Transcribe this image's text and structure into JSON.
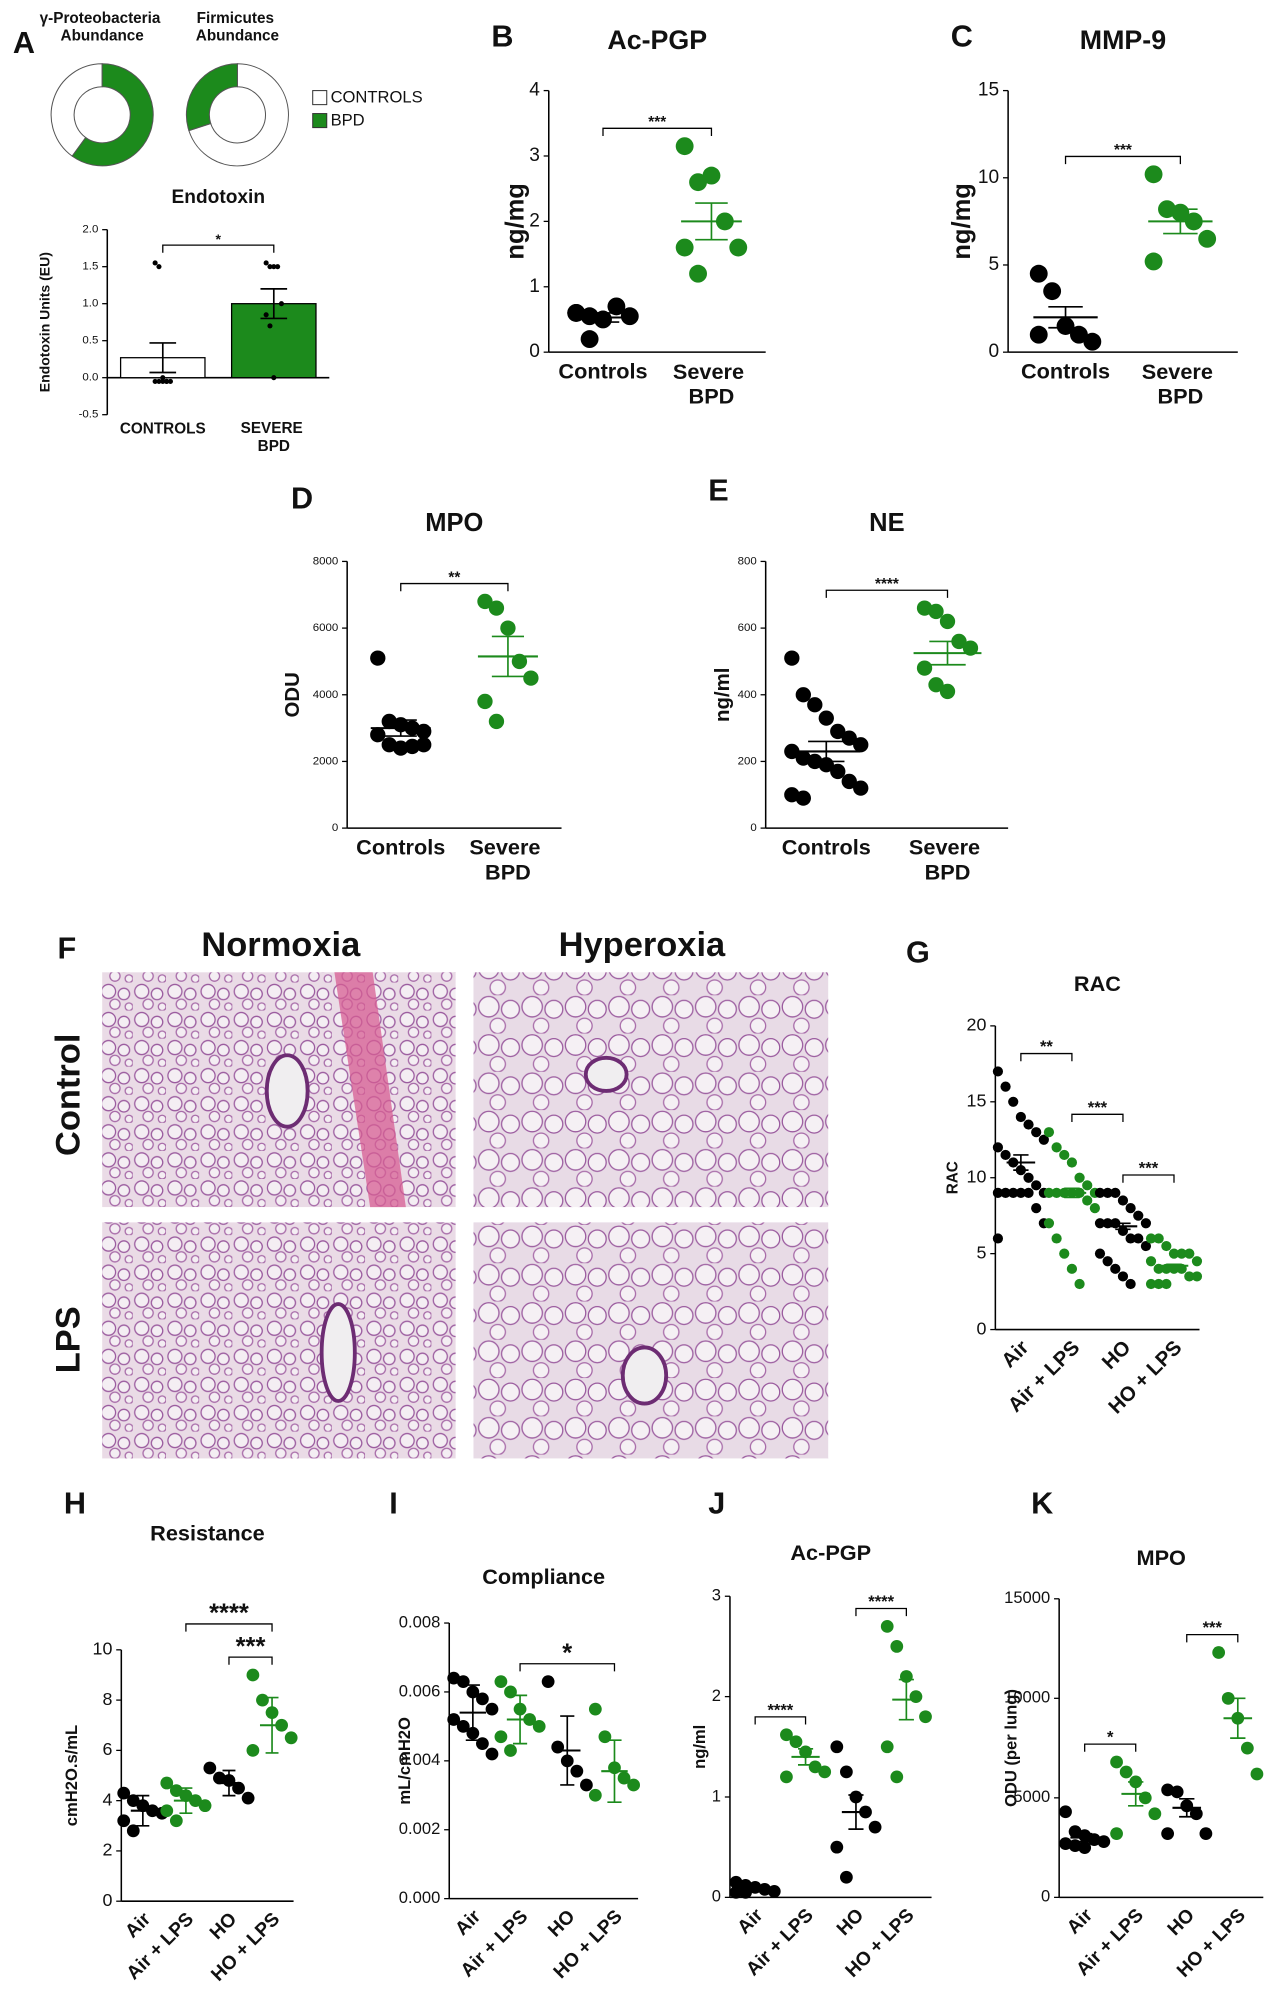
{
  "histology": {
    "letter": "F",
    "columns": [
      "Normoxia",
      "Hyperoxia"
    ],
    "rows": [
      "Control",
      "LPS"
    ]
  },
  "chart_data": [
    {
      "type": "pie",
      "letter": "A",
      "title": "γ-Proteobacteria Abundance",
      "categories": [
        "CONTROLS",
        "BPD"
      ],
      "values": [
        40,
        60
      ],
      "colors": [
        "#ffffff",
        "#1c8a1c"
      ]
    },
    {
      "type": "pie",
      "title": "Firmicutes Abundance",
      "values": [
        70,
        30
      ],
      "colors": [
        "#ffffff",
        "#1c8a1c"
      ]
    },
    {
      "type": "bar",
      "title": "Endotoxin",
      "ylabel": "Endotoxin Units (EU)",
      "categories": [
        "CONTROLS",
        "SEVERE BPD"
      ],
      "values": [
        0.27,
        1.0
      ],
      "errors": [
        0.2,
        0.2
      ],
      "colors": [
        "#ffffff",
        "#1c8a1c"
      ],
      "points": [
        [
          1.55,
          1.5,
          0.0,
          -0.05,
          -0.05,
          -0.05,
          -0.05,
          -0.05,
          -0.05
        ],
        [
          1.55,
          1.5,
          1.5,
          1.5,
          1.0,
          0.85,
          0.7,
          0.0
        ]
      ],
      "ylim": [
        -0.5,
        2.0
      ],
      "yticks": [
        -0.5,
        {
          "value": 0,
          "label": "0.0"
        },
        0.5,
        {
          "value": 1,
          "label": "1.0"
        },
        1.5,
        {
          "value": 2,
          "label": "2.0"
        }
      ],
      "brackets": [
        {
          "pair": [
            0,
            1
          ],
          "label": "*"
        }
      ]
    },
    {
      "type": "dot",
      "letter": "B",
      "title": "Ac-PGP",
      "ylabel": "ng/mg",
      "categories": [
        "Controls",
        "Severe BPD"
      ],
      "colors": [
        "#000000",
        "#1c8a1c"
      ],
      "points": [
        [
          0.6,
          0.55,
          0.5,
          0.7,
          0.55,
          0.6,
          0.2
        ],
        [
          3.15,
          2.6,
          2.7,
          2.0,
          1.6,
          1.6,
          1.2
        ]
      ],
      "means": [
        0.53,
        2.0
      ],
      "errors": [
        0.07,
        0.28
      ],
      "ylim": [
        0,
        4
      ],
      "yticks": [
        0,
        1,
        2,
        3,
        4
      ],
      "brackets": [
        {
          "pair": [
            0,
            1
          ],
          "label": "***"
        }
      ],
      "rotate_x_labels": false
    },
    {
      "type": "dot",
      "letter": "C",
      "title": "MMP-9",
      "ylabel": "ng/mg",
      "categories": [
        "Controls",
        "Severe BPD"
      ],
      "colors": [
        "#000000",
        "#1c8a1c"
      ],
      "points": [
        [
          4.5,
          3.5,
          1.5,
          1.0,
          0.6,
          1.0
        ],
        [
          10.2,
          8.2,
          8.0,
          7.5,
          6.5,
          5.2
        ]
      ],
      "means": [
        2.0,
        7.5
      ],
      "errors": [
        0.6,
        0.7
      ],
      "ylim": [
        0,
        15
      ],
      "yticks": [
        0,
        5,
        10,
        15
      ],
      "brackets": [
        {
          "pair": [
            0,
            1
          ],
          "label": "***"
        }
      ],
      "rotate_x_labels": false
    },
    {
      "type": "dot",
      "letter": "D",
      "title": "MPO",
      "ylabel": "ODU",
      "categories": [
        "Controls",
        "Severe BPD"
      ],
      "colors": [
        "#000000",
        "#1c8a1c"
      ],
      "points": [
        [
          5100,
          3200,
          3100,
          3000,
          2900,
          2800,
          2500,
          2400,
          2450,
          2500
        ],
        [
          6800,
          6600,
          6000,
          5000,
          4500,
          3800,
          3200
        ]
      ],
      "means": [
        3000,
        5150
      ],
      "errors": [
        240,
        600
      ],
      "ylim": [
        0,
        8000
      ],
      "yticks": [
        0,
        2000,
        4000,
        6000,
        8000
      ],
      "brackets": [
        {
          "pair": [
            0,
            1
          ],
          "label": "**"
        }
      ],
      "rotate_x_labels": false
    },
    {
      "type": "dot",
      "letter": "E",
      "title": "NE",
      "ylabel": "ng/ml",
      "categories": [
        "Controls",
        "Severe BPD"
      ],
      "colors": [
        "#000000",
        "#1c8a1c"
      ],
      "points": [
        [
          510,
          400,
          370,
          330,
          290,
          270,
          250,
          230,
          210,
          200,
          190,
          170,
          140,
          120,
          100,
          90
        ],
        [
          660,
          650,
          620,
          560,
          540,
          480,
          430,
          410
        ]
      ],
      "means": [
        230,
        525
      ],
      "errors": [
        30,
        35
      ],
      "ylim": [
        0,
        800
      ],
      "yticks": [
        0,
        200,
        400,
        600,
        800
      ],
      "brackets": [
        {
          "pair": [
            0,
            1
          ],
          "label": "****"
        }
      ],
      "rotate_x_labels": false
    },
    {
      "type": "dot",
      "letter": "G",
      "title": "RAC",
      "ylabel": "RAC",
      "categories": [
        "Air",
        "Air + LPS",
        "HO",
        "HO + LPS"
      ],
      "colors": [
        "#000000",
        "#1c8a1c",
        "#000000",
        "#1c8a1c"
      ],
      "points": [
        [
          17,
          16,
          15,
          14,
          13.5,
          13,
          12.5,
          12,
          11.5,
          11,
          10.5,
          10,
          9.5,
          9,
          9,
          9,
          9,
          9,
          9,
          8,
          7,
          6
        ],
        [
          13,
          12,
          11.5,
          11,
          10,
          9.5,
          9,
          9,
          9,
          9,
          9,
          9,
          8.5,
          8,
          7,
          6,
          5,
          4,
          3
        ],
        [
          9,
          9,
          9,
          8.5,
          8,
          7.5,
          7,
          7,
          7,
          7,
          6.5,
          6,
          6,
          5.5,
          5,
          4.5,
          4,
          3.5,
          3
        ],
        [
          6,
          6,
          5.5,
          5,
          5,
          5,
          4.5,
          4.5,
          4,
          4,
          4,
          4,
          3.5,
          3.5,
          3,
          3,
          3
        ]
      ],
      "means": [
        11,
        9,
        6.8,
        4.2
      ],
      "errors": [
        0.5,
        0.3,
        0.2,
        0.1
      ],
      "ylim": [
        0,
        20
      ],
      "yticks": [
        0,
        5,
        10,
        15,
        20
      ],
      "brackets": [
        {
          "pair": [
            0,
            1
          ],
          "label": "**"
        },
        {
          "pair": [
            1,
            2
          ],
          "label": "***"
        },
        {
          "pair": [
            2,
            3
          ],
          "label": "***"
        }
      ],
      "rotate_x_labels": true
    },
    {
      "type": "dot",
      "letter": "H",
      "title": "Resistance",
      "ylabel": "cmH2O.s/mL",
      "categories": [
        "Air",
        "Air + LPS",
        "HO",
        "HO + LPS"
      ],
      "colors": [
        "#000000",
        "#1c8a1c",
        "#000000",
        "#1c8a1c"
      ],
      "points": [
        [
          4.3,
          4.0,
          3.8,
          3.6,
          3.5,
          3.2,
          2.8
        ],
        [
          4.7,
          4.4,
          4.2,
          4.0,
          3.8,
          3.6,
          3.2
        ],
        [
          5.3,
          4.9,
          4.8,
          4.5,
          4.1
        ],
        [
          9.0,
          8.0,
          7.5,
          7.0,
          6.5,
          6.0
        ]
      ],
      "means": [
        3.6,
        4.0,
        4.7,
        7.0
      ],
      "errors": [
        0.6,
        0.5,
        0.5,
        1.1
      ],
      "ylim": [
        0,
        10
      ],
      "yticks": [
        0,
        2,
        4,
        6,
        8,
        10
      ],
      "brackets": [
        {
          "pair": [
            2,
            3
          ],
          "label": "***"
        },
        {
          "pair": [
            1,
            3
          ],
          "label": "****"
        }
      ],
      "rotate_x_labels": true
    },
    {
      "type": "dot",
      "letter": "I",
      "title": "Compliance",
      "ylabel": "mL/cmH2O",
      "categories": [
        "Air",
        "Air + LPS",
        "HO",
        "HO + LPS"
      ],
      "colors": [
        "#000000",
        "#1c8a1c",
        "#000000",
        "#1c8a1c"
      ],
      "points": [
        [
          0.0064,
          0.0063,
          0.006,
          0.0058,
          0.0055,
          0.0052,
          0.005,
          0.0048,
          0.0045,
          0.0042
        ],
        [
          0.0063,
          0.006,
          0.0055,
          0.0052,
          0.005,
          0.0047,
          0.0043
        ],
        [
          0.0063,
          0.0044,
          0.004,
          0.0037,
          0.0033
        ],
        [
          0.0055,
          0.0047,
          0.0038,
          0.0035,
          0.0033,
          0.003
        ]
      ],
      "means": [
        0.0054,
        0.0052,
        0.0043,
        0.0037
      ],
      "errors": [
        0.0008,
        0.0007,
        0.001,
        0.0009
      ],
      "ylim": [
        0,
        0.008
      ],
      "yticks": [
        {
          "value": 0,
          "label": "0.000"
        },
        {
          "value": 0.002,
          "label": "0.002"
        },
        {
          "value": 0.004,
          "label": "0.004"
        },
        {
          "value": 0.006,
          "label": "0.006"
        },
        {
          "value": 0.008,
          "label": "0.008"
        }
      ],
      "brackets": [
        {
          "pair": [
            1,
            3
          ],
          "label": "*"
        }
      ],
      "rotate_x_labels": true
    },
    {
      "type": "dot",
      "letter": "J",
      "title": "Ac-PGP",
      "ylabel": "ng/ml",
      "categories": [
        "Air",
        "Air + LPS",
        "HO",
        "HO + LPS"
      ],
      "colors": [
        "#000000",
        "#1c8a1c",
        "#000000",
        "#1c8a1c"
      ],
      "points": [
        [
          0.15,
          0.12,
          0.1,
          0.08,
          0.06,
          0.05,
          0.05
        ],
        [
          1.62,
          1.55,
          1.45,
          1.3,
          1.25,
          1.2
        ],
        [
          1.5,
          1.25,
          1.0,
          0.85,
          0.7,
          0.5,
          0.2
        ],
        [
          2.7,
          2.5,
          2.2,
          2.0,
          1.8,
          1.5,
          1.2
        ]
      ],
      "means": [
        0.09,
        1.4,
        0.85,
        1.97
      ],
      "errors": [
        0.02,
        0.08,
        0.17,
        0.2
      ],
      "ylim": [
        0,
        3
      ],
      "yticks": [
        0,
        1,
        2,
        3
      ],
      "brackets": [
        {
          "pair": [
            0,
            1
          ],
          "label": "****"
        },
        {
          "pair": [
            2,
            3
          ],
          "label": "****"
        }
      ],
      "rotate_x_labels": true
    },
    {
      "type": "dot",
      "letter": "K",
      "title": "MPO",
      "ylabel": "ODU (per lung)",
      "categories": [
        "Air",
        "Air + LPS",
        "HO",
        "HO + LPS"
      ],
      "colors": [
        "#000000",
        "#1c8a1c",
        "#000000",
        "#1c8a1c"
      ],
      "points": [
        [
          4300,
          3300,
          3100,
          2900,
          2800,
          2700,
          2600,
          2500
        ],
        [
          6800,
          6300,
          5800,
          5000,
          4200,
          3200
        ],
        [
          5400,
          5300,
          4600,
          4200,
          3200,
          3200
        ],
        [
          12300,
          10000,
          9000,
          7500,
          6200
        ]
      ],
      "means": [
        3000,
        5200,
        4500,
        9000
      ],
      "errors": [
        200,
        600,
        450,
        1000
      ],
      "ylim": [
        0,
        15000
      ],
      "yticks": [
        0,
        5000,
        10000,
        15000
      ],
      "brackets": [
        {
          "pair": [
            0,
            1
          ],
          "label": "*"
        },
        {
          "pair": [
            2,
            3
          ],
          "label": "***"
        }
      ],
      "rotate_x_labels": true
    }
  ]
}
